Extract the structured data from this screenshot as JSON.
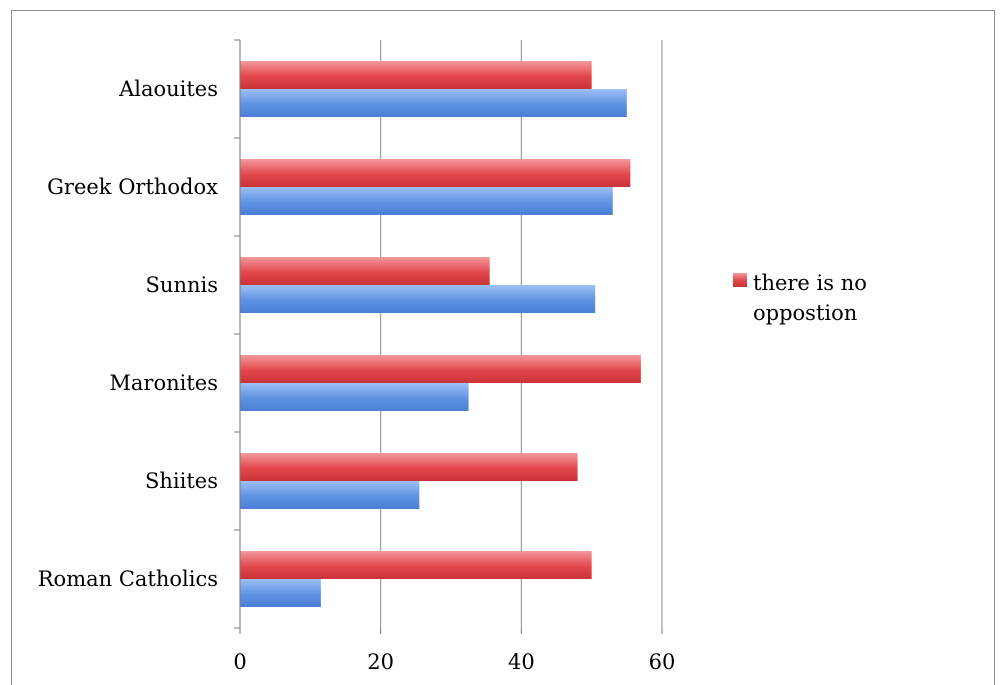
{
  "chart_data": {
    "type": "bar",
    "orientation": "horizontal",
    "categories": [
      "Roman Catholics",
      "Shiites",
      "Maronites",
      "Sunnis",
      "Greek Orthodox",
      "Alaouites"
    ],
    "series": [
      {
        "values": [
          11.5,
          25.5,
          32.5,
          50.5,
          53,
          55
        ],
        "color": "#5b8fde"
      },
      {
        "name": "there is no oppostion",
        "values": [
          50,
          48,
          57,
          35.5,
          55.5,
          50
        ],
        "color": "#e0454a"
      }
    ],
    "x_ticks": [
      "0",
      "20",
      "40",
      "60"
    ],
    "xlim": [
      0,
      60
    ],
    "grid": "vertical gridlines",
    "legend": {
      "position": "right",
      "lines": [
        "there is no",
        "oppostion"
      ]
    }
  }
}
